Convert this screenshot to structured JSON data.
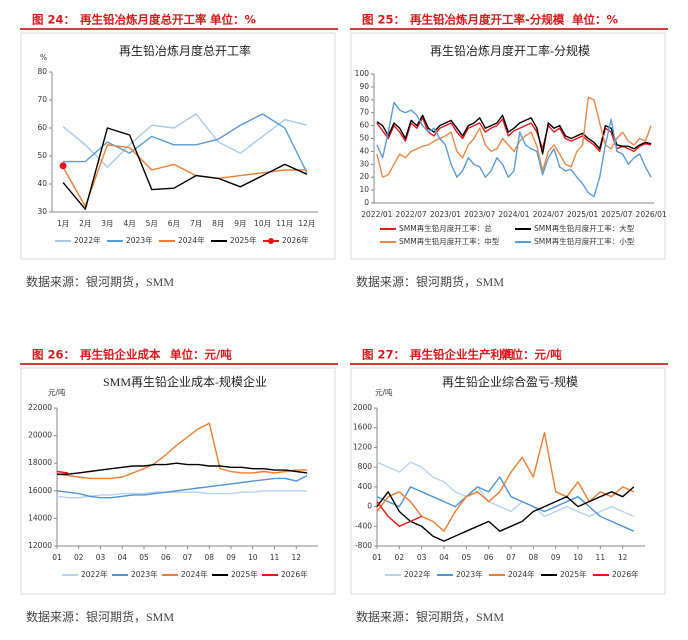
{
  "panels": [
    {
      "figure": "图 24：",
      "heading": "再生铅冶炼月度总开工率",
      "unit": "单位：%",
      "source": "数据来源：银河期货，SMM"
    },
    {
      "figure": "图 25：",
      "heading": "再生铅冶炼月度开工率-分规模",
      "unit": "单位：%",
      "source": "数据来源：银河期货，SMM"
    },
    {
      "figure": "图 26：",
      "heading": "再生铅企业成本",
      "unit": "单位：元/吨",
      "source": "数据来源：银河期货，SMM"
    },
    {
      "figure": "图 27：",
      "heading": "再生铅企业生产利润",
      "unit": "单位：元/吨",
      "source": "数据来源：银河期货，SMM"
    }
  ],
  "chart_data": [
    {
      "type": "line",
      "title": "再生铅冶炼月度总开工率",
      "ylabel": "%",
      "categories": [
        "1月",
        "2月",
        "3月",
        "4月",
        "5月",
        "6月",
        "7月",
        "8月",
        "9月",
        "10月",
        "11月",
        "12月"
      ],
      "ylim": [
        30,
        80
      ],
      "yticks": [
        30,
        40,
        50,
        60,
        70,
        80
      ],
      "series": [
        {
          "name": "2022年",
          "color": "#a9cbe8",
          "values": [
            60.5,
            54,
            46,
            54,
            61,
            60,
            65,
            55,
            51,
            57,
            63,
            61
          ]
        },
        {
          "name": "2023年",
          "color": "#5b9bd5",
          "values": [
            48,
            48,
            55,
            51,
            57,
            54,
            54,
            56,
            61,
            65,
            60,
            44
          ]
        },
        {
          "name": "2024年",
          "color": "#ed7d31",
          "values": [
            46,
            32,
            54,
            53,
            45,
            47,
            43,
            42,
            43,
            44,
            45,
            45
          ]
        },
        {
          "name": "2025年",
          "color": "#000000",
          "values": [
            40.5,
            31,
            60,
            57.5,
            38,
            38.5,
            43,
            42,
            39,
            43,
            47,
            43.5
          ]
        },
        {
          "name": "2026年",
          "color": "#e8161b",
          "marker": "circle",
          "values": [
            46.5,
            null,
            null,
            null,
            null,
            null,
            null,
            null,
            null,
            null,
            null,
            null
          ]
        }
      ]
    },
    {
      "type": "line",
      "title": "再生铅冶炼月度开工率-分规模",
      "categories": [
        "2022/01",
        null,
        null,
        null,
        null,
        null,
        "2022/07",
        null,
        null,
        null,
        null,
        null,
        "2023/01",
        null,
        null,
        null,
        null,
        null,
        "2023/07",
        null,
        null,
        null,
        null,
        null,
        "2024/01",
        null,
        null,
        null,
        null,
        null,
        "2024/07",
        null,
        null,
        null,
        null,
        null,
        "2025/01",
        null,
        null,
        null,
        null,
        null,
        "2025/07",
        null,
        null,
        null,
        null,
        null,
        "2026/01"
      ],
      "ylim": [
        0,
        100
      ],
      "yticks": [
        0,
        10,
        20,
        30,
        40,
        50,
        60,
        70,
        80,
        90,
        100
      ],
      "series": [
        {
          "name": "SMM再生铅月度开工率：总",
          "color": "#e8161b",
          "values": [
            62,
            56,
            50,
            60,
            55,
            48,
            62,
            58,
            66,
            55,
            52,
            58,
            60,
            62,
            55,
            50,
            58,
            60,
            62,
            55,
            58,
            60,
            65,
            52,
            56,
            58,
            60,
            62,
            55,
            42,
            60,
            55,
            58,
            50,
            48,
            50,
            52,
            48,
            45,
            40,
            58,
            55,
            42,
            44,
            42,
            40,
            44,
            46,
            45
          ]
        },
        {
          "name": "SMM再生铅月度开工率：大型",
          "color": "#000000",
          "values": [
            63,
            60,
            52,
            62,
            58,
            50,
            64,
            60,
            68,
            58,
            55,
            60,
            62,
            64,
            58,
            52,
            60,
            62,
            66,
            58,
            60,
            62,
            68,
            55,
            58,
            62,
            64,
            66,
            58,
            38,
            62,
            58,
            60,
            52,
            50,
            52,
            54,
            50,
            47,
            42,
            60,
            58,
            45,
            44,
            44,
            42,
            45,
            47,
            46
          ]
        },
        {
          "name": "SMM再生铅月度开工率：中型",
          "color": "#e8894a",
          "values": [
            38,
            20,
            22,
            30,
            38,
            35,
            40,
            42,
            44,
            45,
            48,
            50,
            52,
            55,
            40,
            35,
            45,
            50,
            58,
            45,
            40,
            42,
            50,
            45,
            40,
            48,
            52,
            55,
            44,
            25,
            40,
            45,
            38,
            30,
            28,
            40,
            45,
            82,
            80,
            62,
            45,
            42,
            50,
            55,
            48,
            45,
            50,
            48,
            60
          ]
        },
        {
          "name": "SMM再生铅月度开工率：小型",
          "color": "#5b9bd5",
          "values": [
            45,
            35,
            55,
            78,
            72,
            70,
            72,
            68,
            60,
            55,
            58,
            50,
            45,
            30,
            20,
            25,
            35,
            30,
            28,
            20,
            25,
            35,
            30,
            20,
            25,
            55,
            45,
            42,
            40,
            22,
            35,
            42,
            28,
            25,
            26,
            20,
            15,
            8,
            5,
            20,
            45,
            65,
            40,
            38,
            30,
            35,
            38,
            28,
            20
          ]
        }
      ]
    },
    {
      "type": "line",
      "title": "SMM再生铅企业成本-规模企业",
      "ylabel": "元/吨",
      "x": [
        1,
        1.5,
        2,
        2.5,
        3,
        3.5,
        4,
        4.5,
        5,
        5.5,
        6,
        6.5,
        7,
        7.5,
        8,
        8.5,
        9,
        9.5,
        10,
        10.5,
        11,
        11.5,
        12,
        12.5
      ],
      "xlim": [
        1,
        13
      ],
      "xticks": [
        {
          "value": 1,
          "label": "01"
        },
        {
          "value": 2,
          "label": "02"
        },
        {
          "value": 3,
          "label": "03"
        },
        {
          "value": 4,
          "label": "04"
        },
        {
          "value": 5,
          "label": "05"
        },
        {
          "value": 6,
          "label": "06"
        },
        {
          "value": 7,
          "label": "07"
        },
        {
          "value": 8,
          "label": "08"
        },
        {
          "value": 9,
          "label": "09"
        },
        {
          "value": 10,
          "label": "10"
        },
        {
          "value": 11,
          "label": "11"
        },
        {
          "value": 12,
          "label": "12"
        }
      ],
      "ylim": [
        12000,
        22000
      ],
      "yticks": [
        12000,
        14000,
        16000,
        18000,
        20000,
        22000
      ],
      "series": [
        {
          "name": "2022年",
          "color": "#b8d2ee",
          "values": [
            15600,
            15500,
            15500,
            15600,
            15700,
            15700,
            15800,
            15800,
            15800,
            15900,
            15900,
            15900,
            15900,
            15900,
            15800,
            15800,
            15800,
            15900,
            15900,
            16000,
            16000,
            16000,
            16000,
            16000
          ]
        },
        {
          "name": "2023年",
          "color": "#4f94d4",
          "values": [
            16000,
            15900,
            15800,
            15600,
            15500,
            15500,
            15600,
            15700,
            15700,
            15800,
            15900,
            16000,
            16100,
            16200,
            16300,
            16400,
            16500,
            16600,
            16700,
            16800,
            16900,
            16900,
            16700,
            17100
          ]
        },
        {
          "name": "2024年",
          "color": "#ed7d31",
          "values": [
            17200,
            17100,
            17000,
            16900,
            16900,
            16900,
            17000,
            17300,
            17600,
            18000,
            18600,
            19300,
            19900,
            20500,
            20900,
            17600,
            17400,
            17300,
            17300,
            17400,
            17300,
            17400,
            17500,
            17500
          ]
        },
        {
          "name": "2025年",
          "color": "#000000",
          "values": [
            17200,
            17200,
            17300,
            17400,
            17500,
            17600,
            17700,
            17800,
            17800,
            17900,
            17900,
            18000,
            17900,
            17900,
            17800,
            17800,
            17700,
            17700,
            17600,
            17600,
            17500,
            17500,
            17400,
            17300
          ]
        },
        {
          "name": "2026年",
          "color": "#e8161b",
          "values": [
            17400,
            17300,
            null,
            null,
            null,
            null,
            null,
            null,
            null,
            null,
            null,
            null,
            null,
            null,
            null,
            null,
            null,
            null,
            null,
            null,
            null,
            null,
            null,
            null
          ]
        }
      ]
    },
    {
      "type": "line",
      "title": "再生铅企业综合盈亏-规模",
      "ylabel": "元/吨",
      "x": [
        1,
        1.5,
        2,
        2.5,
        3,
        3.5,
        4,
        4.5,
        5,
        5.5,
        6,
        6.5,
        7,
        7.5,
        8,
        8.5,
        9,
        9.5,
        10,
        10.5,
        11,
        11.5,
        12,
        12.5
      ],
      "xlim": [
        1,
        13
      ],
      "xticks": [
        {
          "value": 1,
          "label": "01"
        },
        {
          "value": 2,
          "label": "02"
        },
        {
          "value": 3,
          "label": "03"
        },
        {
          "value": 4,
          "label": "04"
        },
        {
          "value": 5,
          "label": "05"
        },
        {
          "value": 6,
          "label": "06"
        },
        {
          "value": 7,
          "label": "07"
        },
        {
          "value": 8,
          "label": "08"
        },
        {
          "value": 9,
          "label": "09"
        },
        {
          "value": 10,
          "label": "10"
        },
        {
          "value": 11,
          "label": "11"
        },
        {
          "value": 12,
          "label": "12"
        }
      ],
      "ylim": [
        -800,
        2000
      ],
      "yticks": [
        -800,
        -400,
        0,
        400,
        800,
        1200,
        1600,
        2000
      ],
      "series": [
        {
          "name": "2022年",
          "color": "#b8d2ee",
          "values": [
            900,
            800,
            700,
            900,
            800,
            600,
            500,
            300,
            200,
            400,
            100,
            0,
            -100,
            100,
            0,
            -200,
            -100,
            0,
            -100,
            -200,
            -100,
            0,
            -100,
            -200
          ]
        },
        {
          "name": "2023年",
          "color": "#4f94d4",
          "values": [
            200,
            100,
            0,
            400,
            300,
            200,
            100,
            0,
            200,
            400,
            300,
            600,
            200,
            100,
            0,
            -100,
            0,
            100,
            200,
            0,
            -200,
            -300,
            -400,
            -500
          ]
        },
        {
          "name": "2024年",
          "color": "#ed7d31",
          "values": [
            -100,
            200,
            300,
            100,
            -200,
            -300,
            -500,
            -100,
            200,
            300,
            100,
            300,
            700,
            1000,
            600,
            1500,
            300,
            200,
            500,
            100,
            300,
            200,
            400,
            300
          ]
        },
        {
          "name": "2025年",
          "color": "#000000",
          "values": [
            0,
            300,
            -100,
            -300,
            -400,
            -600,
            -700,
            -600,
            -500,
            -400,
            -300,
            -500,
            -400,
            -300,
            -100,
            0,
            100,
            200,
            0,
            100,
            200,
            300,
            200,
            400
          ]
        },
        {
          "name": "2026年",
          "color": "#e8161b",
          "values": [
            100,
            -200,
            -400,
            -300,
            -200,
            null,
            null,
            null,
            null,
            null,
            null,
            null,
            null,
            null,
            null,
            null,
            null,
            null,
            null,
            null,
            null,
            null,
            null,
            null
          ]
        }
      ]
    }
  ]
}
